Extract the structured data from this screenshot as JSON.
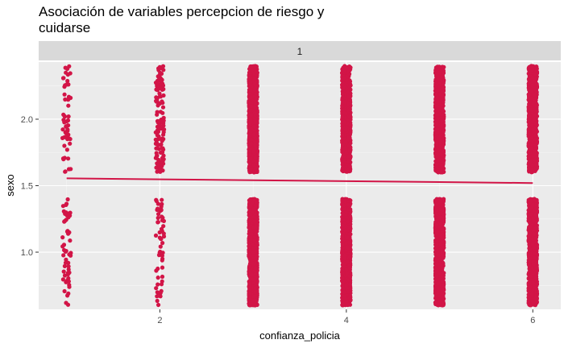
{
  "chart_data": {
    "type": "scatter",
    "title": "Asociación de variables percepcion de riesgo y\ncuidarse",
    "facet_label": "1",
    "xlabel": "confianza_policia",
    "ylabel": "sexo",
    "x_ticks": [
      2,
      4,
      6
    ],
    "y_ticks": [
      1.0,
      1.5,
      2.0
    ],
    "y_tick_labels": [
      "1.0",
      "1.5",
      "2.0"
    ],
    "xlim": [
      0.7,
      6.3
    ],
    "ylim": [
      0.57,
      2.43
    ],
    "grid": true,
    "point_color": "#D21547",
    "panel_background": "#EBEBEB",
    "strip_background": "#D9D9D9",
    "jitter": {
      "x_width": 0.15,
      "y_height": 0.4
    },
    "point_groups": [
      {
        "x": 1,
        "y": 1,
        "density": "sparse"
      },
      {
        "x": 1,
        "y": 2,
        "density": "sparse"
      },
      {
        "x": 2,
        "y": 1,
        "density": "sparse"
      },
      {
        "x": 2,
        "y": 2,
        "density": "medium"
      },
      {
        "x": 3,
        "y": 1,
        "density": "dense"
      },
      {
        "x": 3,
        "y": 2,
        "density": "dense"
      },
      {
        "x": 4,
        "y": 1,
        "density": "dense"
      },
      {
        "x": 4,
        "y": 2,
        "density": "dense"
      },
      {
        "x": 5,
        "y": 1,
        "density": "dense"
      },
      {
        "x": 5,
        "y": 2,
        "density": "dense"
      },
      {
        "x": 6,
        "y": 1,
        "density": "dense"
      },
      {
        "x": 6,
        "y": 2,
        "density": "dense"
      }
    ],
    "fit_line": {
      "x": [
        1,
        2,
        3,
        4,
        5,
        6
      ],
      "y": [
        1.555,
        1.548,
        1.541,
        1.534,
        1.527,
        1.52
      ]
    }
  }
}
